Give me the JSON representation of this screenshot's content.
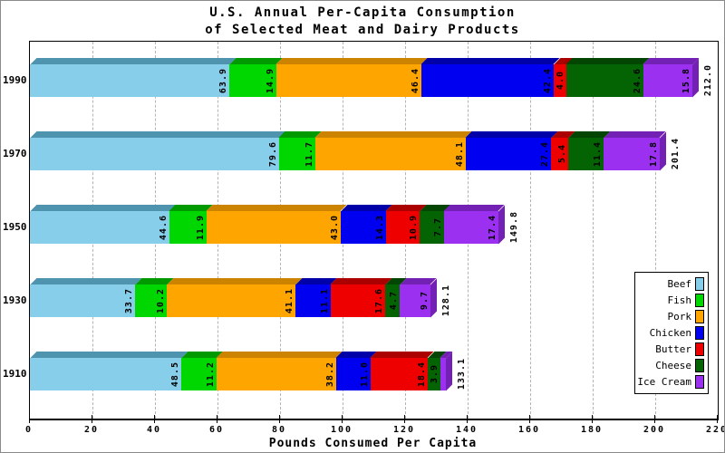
{
  "title": {
    "line1": "U.S. Annual Per-Capita Consumption",
    "line2": "of Selected Meat and Dairy Products"
  },
  "x_axis": {
    "label": "Pounds Consumed Per Capita"
  },
  "legend": {
    "items": [
      {
        "label": "Beef",
        "color": "#87CEEB"
      },
      {
        "label": "Fish",
        "color": "#00D600"
      },
      {
        "label": "Pork",
        "color": "#FFA500"
      },
      {
        "label": "Chicken",
        "color": "#0000F0"
      },
      {
        "label": "Butter",
        "color": "#EE0000"
      },
      {
        "label": "Cheese",
        "color": "#046404"
      },
      {
        "label": "Ice Cream",
        "color": "#9B30F0"
      }
    ]
  },
  "chart_data": {
    "type": "bar",
    "orientation": "horizontal-stacked-3d",
    "title": "U.S. Annual Per-Capita Consumption of Selected Meat and Dairy Products",
    "xlabel": "Pounds Consumed Per Capita",
    "categories": [
      "1990",
      "1970",
      "1950",
      "1930",
      "1910"
    ],
    "series": [
      {
        "name": "Beef",
        "color": "#87CEEB",
        "dark": "#4E94AE",
        "values": [
          63.9,
          79.6,
          44.6,
          33.7,
          48.5
        ]
      },
      {
        "name": "Fish",
        "color": "#00D600",
        "dark": "#009A00",
        "values": [
          14.9,
          11.7,
          11.9,
          10.2,
          11.2
        ]
      },
      {
        "name": "Pork",
        "color": "#FFA500",
        "dark": "#CC8400",
        "values": [
          46.4,
          48.1,
          43.0,
          41.1,
          38.2
        ]
      },
      {
        "name": "Chicken",
        "color": "#0000F0",
        "dark": "#0000A8",
        "values": [
          42.4,
          27.4,
          14.3,
          11.1,
          11.0
        ]
      },
      {
        "name": "Butter",
        "color": "#EE0000",
        "dark": "#AA0000",
        "values": [
          4.0,
          5.4,
          10.9,
          17.6,
          18.4
        ]
      },
      {
        "name": "Cheese",
        "color": "#046404",
        "dark": "#034503",
        "values": [
          24.6,
          11.4,
          7.7,
          4.7,
          3.9
        ]
      },
      {
        "name": "Ice Cream",
        "color": "#9B30F0",
        "dark": "#7320B4",
        "values": [
          15.8,
          17.8,
          17.4,
          9.7,
          1.9
        ]
      }
    ],
    "totals": [
      212.0,
      201.4,
      149.8,
      128.1,
      133.1
    ],
    "xlim": [
      0,
      220
    ],
    "xtick_step": 20,
    "grid": true,
    "legend_position": "right-middle"
  }
}
